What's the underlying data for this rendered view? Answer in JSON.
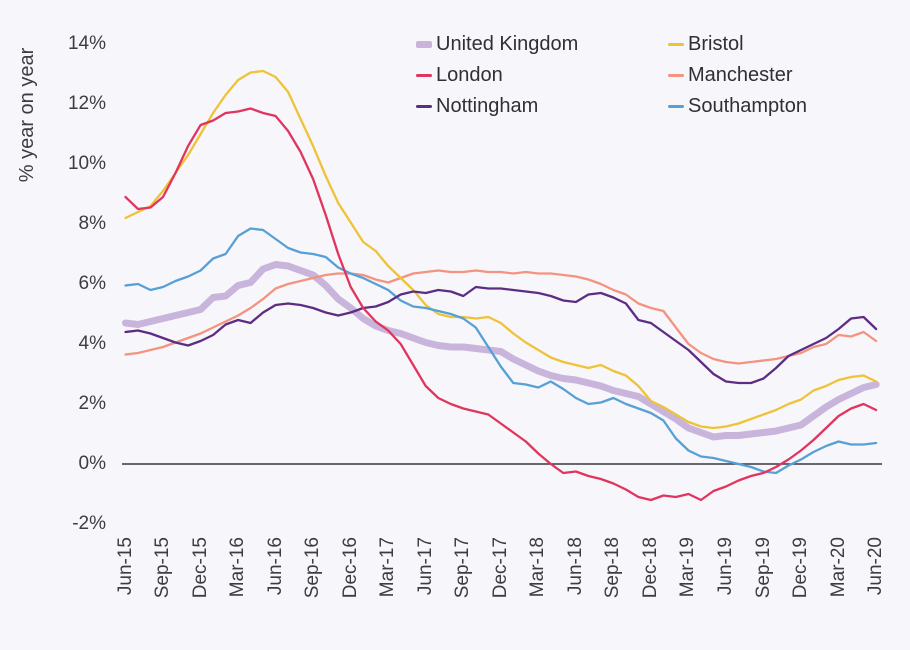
{
  "page": {
    "background": "#f7f6fa",
    "text_color": "#3c3c42"
  },
  "chart_data": {
    "type": "line",
    "title": "",
    "xlabel": "",
    "ylabel": "% year on year",
    "ylim": [
      -2,
      14
    ],
    "grid": false,
    "zero_line": true,
    "zero_line_color": "#38383e",
    "legend_position": "top-right, two columns",
    "y_tick_labels": [
      "14%",
      "12%",
      "10%",
      "8%",
      "6%",
      "4%",
      "2%",
      "0%",
      "-2%"
    ],
    "y_tick_values": [
      14,
      12,
      10,
      8,
      6,
      4,
      2,
      0,
      -2
    ],
    "x_tick_labels": [
      "Jun-15",
      "Sep-15",
      "Dec-15",
      "Mar-16",
      "Jun-16",
      "Sep-16",
      "Dec-16",
      "Mar-17",
      "Jun-17",
      "Sep-17",
      "Dec-17",
      "Mar-18",
      "Jun-18",
      "Sep-18",
      "Dec-18",
      "Mar-19",
      "Jun-19",
      "Sep-19",
      "Dec-19",
      "Mar-20",
      "Jun-20"
    ],
    "x_frequency": "monthly, Jun-2015 to Jun-2020 (61 points per series)",
    "legend": {
      "columns": [
        [
          "United Kingdom",
          "London",
          "Nottingham"
        ],
        [
          "Bristol",
          "Manchester",
          "Southampton"
        ]
      ]
    },
    "series": [
      {
        "name": "United Kingdom",
        "color": "#c9b5dc",
        "line_width": 7,
        "legend_swatch_height": 7,
        "values": [
          4.7,
          4.65,
          4.75,
          4.85,
          4.95,
          5.05,
          5.15,
          5.55,
          5.6,
          5.95,
          6.05,
          6.5,
          6.65,
          6.6,
          6.45,
          6.3,
          5.95,
          5.5,
          5.2,
          4.85,
          4.6,
          4.45,
          4.35,
          4.2,
          4.05,
          3.95,
          3.9,
          3.9,
          3.85,
          3.8,
          3.75,
          3.5,
          3.3,
          3.1,
          2.95,
          2.85,
          2.8,
          2.7,
          2.6,
          2.45,
          2.35,
          2.25,
          2.0,
          1.75,
          1.5,
          1.2,
          1.05,
          0.9,
          0.95,
          0.95,
          1.0,
          1.05,
          1.1,
          1.2,
          1.3,
          1.6,
          1.9,
          2.15,
          2.35,
          2.55,
          2.65
        ]
      },
      {
        "name": "Manchester",
        "color": "#f4937f",
        "line_width": 2.3,
        "legend_swatch_height": 3,
        "values": [
          3.65,
          3.7,
          3.8,
          3.9,
          4.05,
          4.2,
          4.35,
          4.55,
          4.75,
          4.95,
          5.2,
          5.5,
          5.85,
          6.0,
          6.1,
          6.2,
          6.3,
          6.35,
          6.35,
          6.3,
          6.15,
          6.05,
          6.2,
          6.35,
          6.4,
          6.45,
          6.4,
          6.4,
          6.45,
          6.4,
          6.4,
          6.35,
          6.4,
          6.35,
          6.35,
          6.3,
          6.25,
          6.15,
          6.0,
          5.8,
          5.65,
          5.35,
          5.2,
          5.1,
          4.55,
          4.0,
          3.7,
          3.5,
          3.4,
          3.35,
          3.4,
          3.45,
          3.5,
          3.6,
          3.7,
          3.9,
          4.0,
          4.3,
          4.25,
          4.4,
          4.1
        ]
      },
      {
        "name": "Bristol",
        "color": "#eec338",
        "line_width": 2.3,
        "legend_swatch_height": 3,
        "values": [
          8.2,
          8.4,
          8.6,
          9.1,
          9.7,
          10.3,
          11.0,
          11.7,
          12.3,
          12.8,
          13.05,
          13.1,
          12.9,
          12.4,
          11.5,
          10.6,
          9.6,
          8.7,
          8.05,
          7.4,
          7.1,
          6.6,
          6.2,
          5.8,
          5.3,
          5.0,
          4.9,
          4.9,
          4.85,
          4.9,
          4.7,
          4.35,
          4.05,
          3.8,
          3.55,
          3.4,
          3.3,
          3.2,
          3.3,
          3.1,
          2.95,
          2.6,
          2.1,
          1.9,
          1.65,
          1.4,
          1.25,
          1.2,
          1.25,
          1.35,
          1.5,
          1.65,
          1.8,
          2.0,
          2.15,
          2.45,
          2.6,
          2.8,
          2.9,
          2.95,
          2.75
        ]
      },
      {
        "name": "Southampton",
        "color": "#56a0d5",
        "line_width": 2.3,
        "legend_swatch_height": 3,
        "values": [
          5.95,
          6.0,
          5.8,
          5.9,
          6.1,
          6.25,
          6.45,
          6.85,
          7.0,
          7.6,
          7.85,
          7.8,
          7.5,
          7.2,
          7.05,
          7.0,
          6.9,
          6.55,
          6.35,
          6.2,
          6.0,
          5.8,
          5.45,
          5.25,
          5.2,
          5.1,
          5.0,
          4.85,
          4.55,
          3.9,
          3.25,
          2.7,
          2.65,
          2.55,
          2.75,
          2.5,
          2.2,
          2.0,
          2.05,
          2.2,
          2.0,
          1.85,
          1.7,
          1.45,
          0.85,
          0.45,
          0.25,
          0.2,
          0.1,
          0.0,
          -0.1,
          -0.25,
          -0.3,
          -0.05,
          0.15,
          0.4,
          0.6,
          0.75,
          0.65,
          0.65,
          0.7
        ]
      },
      {
        "name": "Nottingham",
        "color": "#5c2d83",
        "line_width": 2.3,
        "legend_swatch_height": 3,
        "values": [
          4.4,
          4.45,
          4.35,
          4.2,
          4.05,
          3.95,
          4.1,
          4.3,
          4.65,
          4.8,
          4.7,
          5.05,
          5.3,
          5.35,
          5.3,
          5.2,
          5.05,
          4.95,
          5.05,
          5.2,
          5.25,
          5.4,
          5.65,
          5.75,
          5.7,
          5.8,
          5.75,
          5.6,
          5.9,
          5.85,
          5.85,
          5.8,
          5.75,
          5.7,
          5.6,
          5.45,
          5.4,
          5.65,
          5.7,
          5.55,
          5.35,
          4.8,
          4.7,
          4.4,
          4.1,
          3.8,
          3.4,
          3.0,
          2.75,
          2.7,
          2.7,
          2.85,
          3.2,
          3.6,
          3.8,
          4.0,
          4.2,
          4.5,
          4.85,
          4.9,
          4.5
        ]
      },
      {
        "name": "London",
        "color": "#e0355e",
        "line_width": 2.3,
        "legend_swatch_height": 3,
        "values": [
          8.9,
          8.5,
          8.55,
          8.9,
          9.7,
          10.6,
          11.3,
          11.45,
          11.7,
          11.75,
          11.85,
          11.7,
          11.6,
          11.1,
          10.4,
          9.5,
          8.3,
          7.0,
          5.9,
          5.2,
          4.75,
          4.45,
          4.0,
          3.3,
          2.6,
          2.2,
          2.0,
          1.85,
          1.75,
          1.65,
          1.35,
          1.05,
          0.75,
          0.35,
          0.0,
          -0.3,
          -0.25,
          -0.4,
          -0.5,
          -0.65,
          -0.85,
          -1.1,
          -1.2,
          -1.05,
          -1.1,
          -1.0,
          -1.2,
          -0.9,
          -0.75,
          -0.55,
          -0.4,
          -0.3,
          -0.1,
          0.15,
          0.45,
          0.8,
          1.2,
          1.6,
          1.85,
          2.0,
          1.8
        ]
      }
    ]
  }
}
